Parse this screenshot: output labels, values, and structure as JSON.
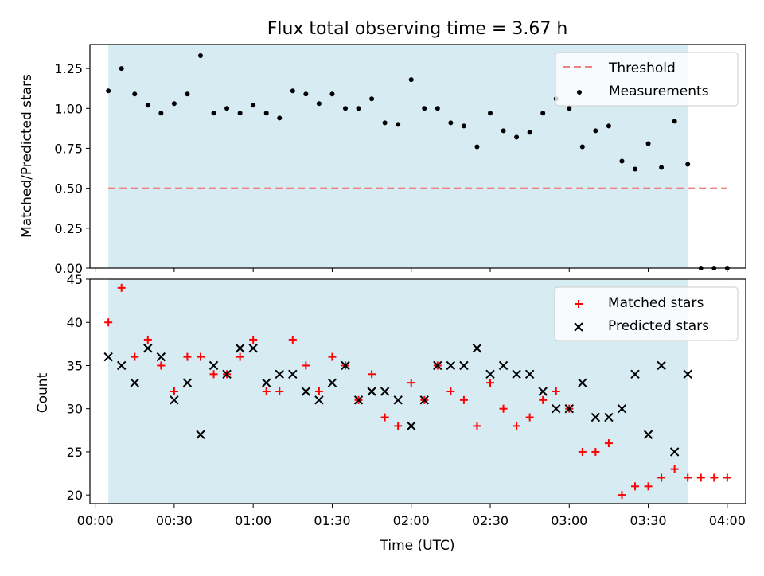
{
  "figure": {
    "title": "Flux total observing time = 3.67 h",
    "xlabel": "Time (UTC)",
    "xticks": [
      {
        "min": 0,
        "label": "00:00"
      },
      {
        "min": 30,
        "label": "00:30"
      },
      {
        "min": 60,
        "label": "01:00"
      },
      {
        "min": 90,
        "label": "01:30"
      },
      {
        "min": 120,
        "label": "02:00"
      },
      {
        "min": 150,
        "label": "02:30"
      },
      {
        "min": 180,
        "label": "03:00"
      },
      {
        "min": 210,
        "label": "03:30"
      },
      {
        "min": 240,
        "label": "04:00"
      }
    ],
    "observing_window": {
      "start": "00:05",
      "end": "03:45"
    },
    "colors": {
      "window": "#add8e6",
      "threshold": "#f08080",
      "measurements": "#000000",
      "matched": "#ff0000",
      "predicted": "#000000"
    }
  },
  "chart_data": [
    {
      "type": "scatter",
      "title": "Flux total observing time = 3.67 h",
      "ylabel": "Matched/Predicted stars",
      "xlim": [
        "23:58",
        "04:07"
      ],
      "ylim": [
        0,
        1.4
      ],
      "yticks": [
        "0.00",
        "0.25",
        "0.50",
        "0.75",
        "1.00",
        "1.25"
      ],
      "threshold": 0.5,
      "threshold_x": [
        "00:05",
        "04:00"
      ],
      "legend": {
        "position": "top-right",
        "entries": [
          "Threshold",
          "Measurements"
        ]
      },
      "series": [
        {
          "name": "Measurements",
          "x": [
            "00:05",
            "00:10",
            "00:15",
            "00:20",
            "00:25",
            "00:30",
            "00:35",
            "00:40",
            "00:45",
            "00:50",
            "00:55",
            "01:00",
            "01:05",
            "01:10",
            "01:15",
            "01:20",
            "01:25",
            "01:30",
            "01:35",
            "01:40",
            "01:45",
            "01:50",
            "01:55",
            "02:00",
            "02:05",
            "02:10",
            "02:15",
            "02:20",
            "02:25",
            "02:30",
            "02:35",
            "02:40",
            "02:45",
            "02:50",
            "02:55",
            "03:00",
            "03:05",
            "03:10",
            "03:15",
            "03:20",
            "03:25",
            "03:30",
            "03:35",
            "03:40",
            "03:45",
            "03:50",
            "03:55",
            "04:00"
          ],
          "y": [
            1.11,
            1.25,
            1.09,
            1.02,
            0.97,
            1.03,
            1.09,
            1.33,
            0.97,
            1.0,
            0.97,
            1.02,
            0.97,
            0.94,
            1.11,
            1.09,
            1.03,
            1.09,
            1.0,
            1.0,
            1.06,
            0.91,
            0.9,
            1.18,
            1.0,
            1.0,
            0.91,
            0.89,
            0.76,
            0.97,
            0.86,
            0.82,
            0.85,
            0.97,
            1.06,
            1.0,
            0.76,
            0.86,
            0.89,
            0.67,
            0.62,
            0.78,
            0.63,
            0.92,
            0.65,
            0.0,
            0.0,
            0.0
          ]
        }
      ]
    },
    {
      "type": "scatter",
      "ylabel": "Count",
      "xlabel": "Time (UTC)",
      "xlim": [
        "23:58",
        "04:07"
      ],
      "ylim": [
        19,
        45
      ],
      "yticks": [
        20,
        25,
        30,
        35,
        40,
        45
      ],
      "legend": {
        "position": "top-right",
        "entries": [
          "Matched stars",
          "Predicted stars"
        ]
      },
      "series": [
        {
          "name": "Matched stars",
          "marker": "plus",
          "x": [
            "00:05",
            "00:10",
            "00:15",
            "00:20",
            "00:25",
            "00:30",
            "00:35",
            "00:40",
            "00:45",
            "00:50",
            "00:55",
            "01:00",
            "01:05",
            "01:10",
            "01:15",
            "01:20",
            "01:25",
            "01:30",
            "01:35",
            "01:40",
            "01:45",
            "01:50",
            "01:55",
            "02:00",
            "02:05",
            "02:10",
            "02:15",
            "02:20",
            "02:25",
            "02:30",
            "02:35",
            "02:40",
            "02:45",
            "02:50",
            "02:55",
            "03:00",
            "03:05",
            "03:10",
            "03:15",
            "03:20",
            "03:25",
            "03:30",
            "03:35",
            "03:40",
            "03:45",
            "03:50",
            "03:55",
            "04:00"
          ],
          "y": [
            40,
            44,
            36,
            38,
            35,
            32,
            36,
            36,
            34,
            34,
            36,
            38,
            32,
            32,
            38,
            35,
            32,
            36,
            35,
            31,
            34,
            29,
            28,
            33,
            31,
            35,
            32,
            31,
            28,
            33,
            30,
            28,
            29,
            31,
            32,
            30,
            25,
            25,
            26,
            20,
            21,
            21,
            22,
            23,
            22,
            22,
            22,
            22
          ]
        },
        {
          "name": "Predicted stars",
          "marker": "x",
          "x": [
            "00:05",
            "00:10",
            "00:15",
            "00:20",
            "00:25",
            "00:30",
            "00:35",
            "00:40",
            "00:45",
            "00:50",
            "00:55",
            "01:00",
            "01:05",
            "01:10",
            "01:15",
            "01:20",
            "01:25",
            "01:30",
            "01:35",
            "01:40",
            "01:45",
            "01:50",
            "01:55",
            "02:00",
            "02:05",
            "02:10",
            "02:15",
            "02:20",
            "02:25",
            "02:30",
            "02:35",
            "02:40",
            "02:45",
            "02:50",
            "02:55",
            "03:00",
            "03:05",
            "03:10",
            "03:15",
            "03:20",
            "03:25",
            "03:30",
            "03:35",
            "03:40",
            "03:45"
          ],
          "y": [
            36,
            35,
            33,
            37,
            36,
            31,
            33,
            27,
            35,
            34,
            37,
            37,
            33,
            34,
            34,
            32,
            31,
            33,
            35,
            31,
            32,
            32,
            31,
            28,
            31,
            35,
            35,
            35,
            37,
            34,
            35,
            34,
            34,
            32,
            30,
            30,
            33,
            29,
            29,
            30,
            34,
            27,
            35,
            25,
            34
          ]
        }
      ]
    }
  ]
}
